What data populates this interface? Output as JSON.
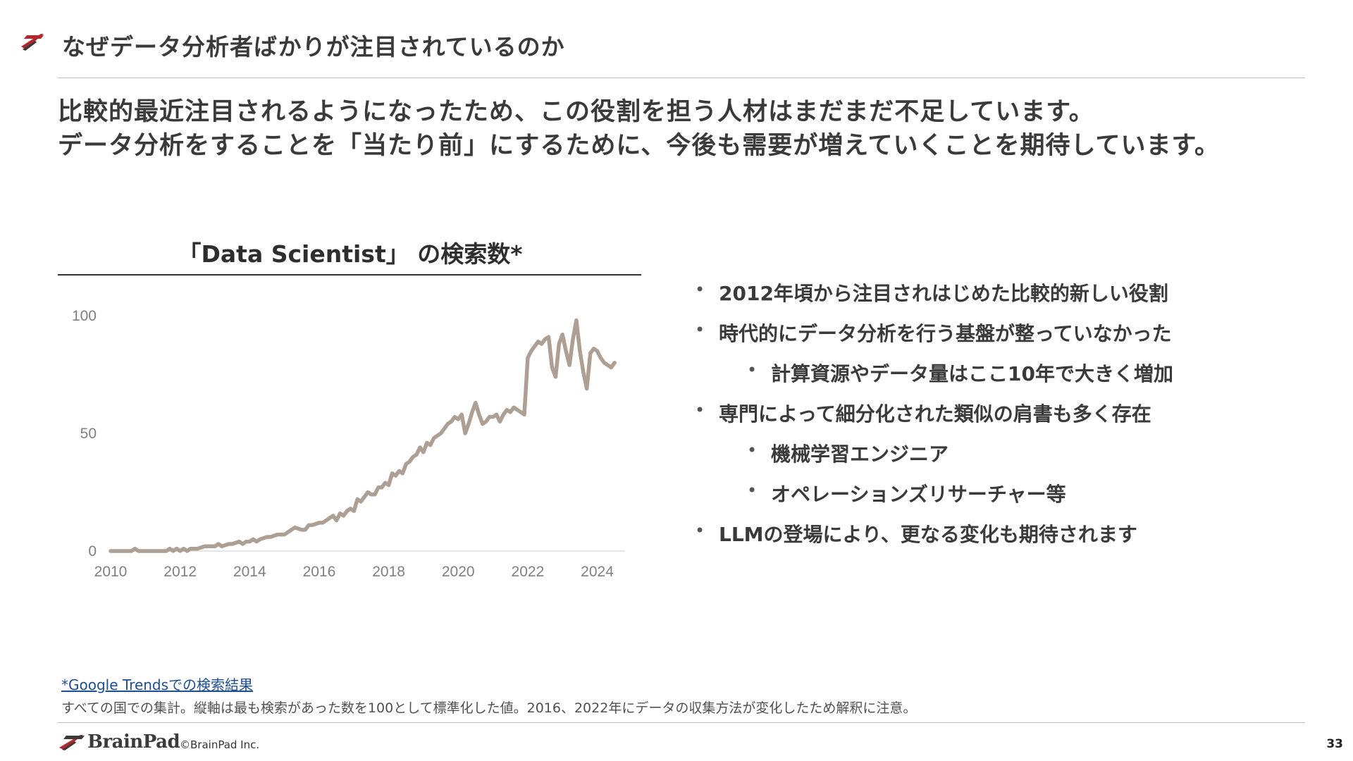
{
  "header": {
    "title": "なぜデータ分析者ばかりが注目されているのか",
    "brand_color": "#b3272d"
  },
  "lead": {
    "line1": "比較的最近注目されるようになったため、この役割を担う人材はまだまだ不足しています。",
    "line2": "データ分析をすることを「当たり前」にするために、今後も需要が増えていくことを期待しています。"
  },
  "bullets": [
    {
      "level": 1,
      "text": "2012年頃から注目されはじめた比較的新しい役割"
    },
    {
      "level": 1,
      "text": "時代的にデータ分析を行う基盤が整っていなかった"
    },
    {
      "level": 2,
      "text": "計算資源やデータ量はここ10年で大きく増加"
    },
    {
      "level": 1,
      "text": "専門によって細分化された類似の肩書も多く存在"
    },
    {
      "level": 2,
      "text": "機械学習エンジニア"
    },
    {
      "level": 2,
      "text": "オペレーションズリサーチャー等"
    },
    {
      "level": 1,
      "text": "LLMの登場により、更なる変化も期待されます"
    }
  ],
  "bullet_glyph": "•",
  "chart_data": {
    "type": "line",
    "title": "「Data Scientist」 の検索数*",
    "xlabel": "",
    "ylabel": "",
    "xlim": [
      2010,
      2024.8
    ],
    "ylim": [
      0,
      100
    ],
    "xticks": [
      2010,
      2012,
      2014,
      2016,
      2018,
      2020,
      2022,
      2024
    ],
    "yticks": [
      0,
      50,
      100
    ],
    "grid": "baseline only",
    "line_color": "#ad9f93",
    "series": [
      {
        "points": [
          [
            2010.0,
            0
          ],
          [
            2010.3,
            0
          ],
          [
            2010.6,
            0
          ],
          [
            2010.7,
            1
          ],
          [
            2010.8,
            0
          ],
          [
            2011.0,
            0
          ],
          [
            2011.3,
            0
          ],
          [
            2011.6,
            0
          ],
          [
            2011.7,
            1
          ],
          [
            2011.8,
            0
          ],
          [
            2011.9,
            1
          ],
          [
            2012.0,
            0
          ],
          [
            2012.1,
            1
          ],
          [
            2012.2,
            0
          ],
          [
            2012.3,
            1
          ],
          [
            2012.5,
            1
          ],
          [
            2012.7,
            2
          ],
          [
            2012.9,
            2
          ],
          [
            2013.0,
            2
          ],
          [
            2013.1,
            3
          ],
          [
            2013.2,
            2
          ],
          [
            2013.4,
            3
          ],
          [
            2013.5,
            3
          ],
          [
            2013.7,
            4
          ],
          [
            2013.8,
            3
          ],
          [
            2013.9,
            4
          ],
          [
            2014.0,
            4
          ],
          [
            2014.1,
            5
          ],
          [
            2014.2,
            4
          ],
          [
            2014.3,
            5
          ],
          [
            2014.5,
            6
          ],
          [
            2014.6,
            6
          ],
          [
            2014.8,
            7
          ],
          [
            2014.9,
            7
          ],
          [
            2015.0,
            7
          ],
          [
            2015.2,
            9
          ],
          [
            2015.3,
            10
          ],
          [
            2015.5,
            9
          ],
          [
            2015.6,
            9
          ],
          [
            2015.7,
            11
          ],
          [
            2015.8,
            11
          ],
          [
            2016.0,
            12
          ],
          [
            2016.1,
            12
          ],
          [
            2016.2,
            13
          ],
          [
            2016.3,
            14
          ],
          [
            2016.4,
            15
          ],
          [
            2016.5,
            13
          ],
          [
            2016.6,
            16
          ],
          [
            2016.7,
            15
          ],
          [
            2016.8,
            17
          ],
          [
            2016.9,
            18
          ],
          [
            2017.0,
            17
          ],
          [
            2017.1,
            22
          ],
          [
            2017.2,
            21
          ],
          [
            2017.3,
            23
          ],
          [
            2017.4,
            25
          ],
          [
            2017.5,
            24
          ],
          [
            2017.6,
            24
          ],
          [
            2017.7,
            27
          ],
          [
            2017.8,
            27
          ],
          [
            2017.9,
            29
          ],
          [
            2018.0,
            28
          ],
          [
            2018.1,
            33
          ],
          [
            2018.2,
            32
          ],
          [
            2018.3,
            34
          ],
          [
            2018.4,
            33
          ],
          [
            2018.5,
            37
          ],
          [
            2018.6,
            38
          ],
          [
            2018.7,
            40
          ],
          [
            2018.8,
            41
          ],
          [
            2018.9,
            44
          ],
          [
            2019.0,
            42
          ],
          [
            2019.1,
            46
          ],
          [
            2019.2,
            45
          ],
          [
            2019.3,
            48
          ],
          [
            2019.4,
            49
          ],
          [
            2019.5,
            50
          ],
          [
            2019.6,
            52
          ],
          [
            2019.7,
            54
          ],
          [
            2019.8,
            55
          ],
          [
            2019.9,
            57
          ],
          [
            2020.0,
            56
          ],
          [
            2020.1,
            58
          ],
          [
            2020.2,
            50
          ],
          [
            2020.3,
            54
          ],
          [
            2020.4,
            59
          ],
          [
            2020.5,
            63
          ],
          [
            2020.6,
            58
          ],
          [
            2020.7,
            54
          ],
          [
            2020.8,
            55
          ],
          [
            2020.9,
            57
          ],
          [
            2021.0,
            57
          ],
          [
            2021.1,
            58
          ],
          [
            2021.2,
            55
          ],
          [
            2021.3,
            58
          ],
          [
            2021.4,
            60
          ],
          [
            2021.5,
            59
          ],
          [
            2021.6,
            61
          ],
          [
            2021.7,
            60
          ],
          [
            2021.8,
            59
          ],
          [
            2021.9,
            58
          ],
          [
            2022.0,
            82
          ],
          [
            2022.1,
            85
          ],
          [
            2022.2,
            87
          ],
          [
            2022.3,
            89
          ],
          [
            2022.4,
            88
          ],
          [
            2022.5,
            90
          ],
          [
            2022.6,
            91
          ],
          [
            2022.7,
            78
          ],
          [
            2022.8,
            74
          ],
          [
            2022.9,
            88
          ],
          [
            2023.0,
            92
          ],
          [
            2023.1,
            85
          ],
          [
            2023.2,
            79
          ],
          [
            2023.3,
            90
          ],
          [
            2023.4,
            98
          ],
          [
            2023.5,
            85
          ],
          [
            2023.6,
            76
          ],
          [
            2023.7,
            69
          ],
          [
            2023.8,
            84
          ],
          [
            2023.9,
            86
          ],
          [
            2024.0,
            85
          ],
          [
            2024.1,
            82
          ],
          [
            2024.2,
            80
          ],
          [
            2024.3,
            79
          ],
          [
            2024.4,
            78
          ],
          [
            2024.5,
            80
          ]
        ]
      }
    ]
  },
  "footnote": {
    "link_text": "*Google Trendsでの検索結果",
    "note": "すべての国での集計。縦軸は最も検索があった数を100として標準化した値。2016、2022年にデータの収集方法が変化したため解釈に注意。"
  },
  "footer": {
    "brand": "BrainPad",
    "copyright": "©BrainPad Inc.",
    "page_number": "33"
  }
}
